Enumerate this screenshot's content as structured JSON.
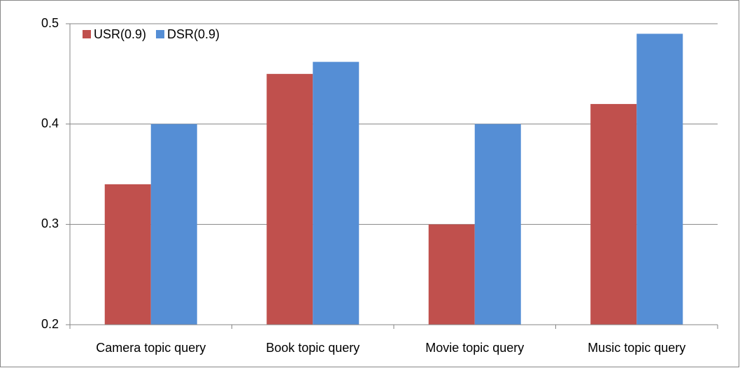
{
  "chart_data": {
    "type": "grouped_bar",
    "categories": [
      "Camera topic query",
      "Book topic query",
      "Movie topic query",
      "Music topic query"
    ],
    "series": [
      {
        "name": "USR(0.9)",
        "color": "#c0504d",
        "values": [
          0.34,
          0.45,
          0.3,
          0.42
        ]
      },
      {
        "name": "DSR(0.9)",
        "color": "#558ed5",
        "values": [
          0.4,
          0.462,
          0.4,
          0.49
        ]
      }
    ],
    "ylim": [
      0.2,
      0.5
    ],
    "yticks": [
      0.2,
      0.3,
      0.4,
      0.5
    ],
    "grid": true,
    "legend": "upper left"
  }
}
